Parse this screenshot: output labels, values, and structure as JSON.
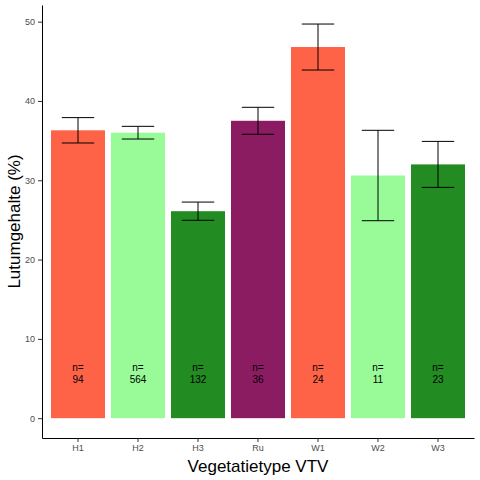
{
  "chart_data": {
    "type": "bar",
    "x_label": "Vegetatietype VTV",
    "y_label": "Lutumgehalte (%)",
    "categories": [
      "H1",
      "H2",
      "H3",
      "Ru",
      "W1",
      "W2",
      "W3"
    ],
    "values": [
      36.3,
      36.0,
      26.1,
      37.5,
      46.8,
      30.6,
      32.0
    ],
    "errors": [
      1.6,
      0.8,
      1.15,
      1.7,
      2.9,
      5.7,
      2.9
    ],
    "colors": [
      "#ff6347",
      "#98fb98",
      "#228b22",
      "#8b1c62",
      "#ff6347",
      "#98fb98",
      "#228b22"
    ],
    "annotations": [
      {
        "label": "n=",
        "n": 94
      },
      {
        "label": "n=",
        "n": 564
      },
      {
        "label": "n=",
        "n": 132
      },
      {
        "label": "n=",
        "n": 36
      },
      {
        "label": "n=",
        "n": 24
      },
      {
        "label": "n=",
        "n": 11
      },
      {
        "label": "n=",
        "n": 23
      }
    ],
    "ylim": [
      -2.5,
      52.1
    ],
    "yticks": [
      0,
      10,
      20,
      30,
      40,
      50
    ],
    "grid": false
  }
}
